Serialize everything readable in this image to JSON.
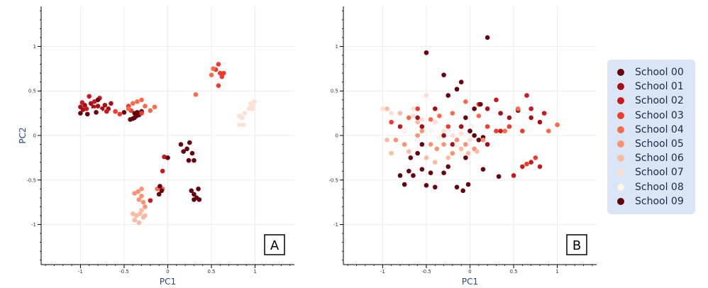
{
  "chart_data": [
    {
      "type": "scatter",
      "panel_label": "A",
      "xlabel": "PC1",
      "ylabel": "PC2",
      "xlim": [
        -1.45,
        1.45
      ],
      "ylim": [
        -1.45,
        1.45
      ],
      "xticks": [
        "-1",
        "-0.5",
        "0",
        "0.5",
        "1"
      ],
      "yticks": [
        "-1",
        "-0.5",
        "0",
        "0.5",
        "1"
      ],
      "series": [
        {
          "name": "School 00",
          "points": [
            [
              -0.3,
              0.27
            ],
            [
              -0.38,
              0.2
            ],
            [
              -0.35,
              0.26
            ],
            [
              -0.4,
              0.19
            ],
            [
              -0.33,
              0.23
            ],
            [
              -0.38,
              0.25
            ],
            [
              -0.36,
              0.22
            ]
          ]
        },
        {
          "name": "School 01",
          "points": [
            [
              -1.0,
              0.32
            ],
            [
              -0.95,
              0.34
            ],
            [
              -0.88,
              0.36
            ],
            [
              -0.85,
              0.32
            ],
            [
              -0.97,
              0.29
            ],
            [
              -0.8,
              0.33
            ],
            [
              -0.75,
              0.3
            ],
            [
              -0.72,
              0.34
            ],
            [
              -0.68,
              0.3
            ],
            [
              -0.65,
              0.36
            ]
          ]
        },
        {
          "name": "School 02",
          "points": [
            [
              -0.98,
              0.37
            ],
            [
              -0.93,
              0.3
            ],
            [
              -0.9,
              0.44
            ],
            [
              -0.84,
              0.38
            ],
            [
              -0.78,
              0.42
            ],
            [
              -0.7,
              0.27
            ],
            [
              -0.2,
              -0.73
            ],
            [
              -0.06,
              -0.4
            ],
            [
              -0.04,
              -0.24
            ]
          ]
        },
        {
          "name": "School 03",
          "points": [
            [
              -0.6,
              0.27
            ],
            [
              -0.55,
              0.24
            ],
            [
              -0.45,
              0.33
            ],
            [
              -0.42,
              0.28
            ],
            [
              -0.3,
              0.25
            ],
            [
              0.55,
              0.74
            ],
            [
              0.58,
              0.8
            ],
            [
              0.6,
              0.7
            ],
            [
              0.62,
              0.66
            ],
            [
              0.64,
              0.7
            ],
            [
              0.58,
              0.56
            ]
          ]
        },
        {
          "name": "School 04",
          "points": [
            [
              -0.45,
              0.3
            ],
            [
              -0.4,
              0.36
            ],
            [
              -0.35,
              0.38
            ],
            [
              -0.3,
              0.4
            ],
            [
              -0.26,
              0.33
            ],
            [
              -0.2,
              0.28
            ],
            [
              -0.15,
              0.32
            ],
            [
              0.32,
              0.46
            ],
            [
              0.5,
              0.68
            ],
            [
              0.52,
              0.75
            ],
            [
              -0.12,
              -0.6
            ],
            [
              -0.06,
              -0.6
            ]
          ]
        },
        {
          "name": "School 05",
          "points": [
            [
              -0.38,
              -0.65
            ],
            [
              -0.34,
              -0.63
            ],
            [
              -0.3,
              -0.68
            ],
            [
              -0.28,
              -0.75
            ],
            [
              -0.33,
              -0.72
            ],
            [
              -0.26,
              -0.8
            ],
            [
              -0.3,
              -0.6
            ]
          ]
        },
        {
          "name": "School 06",
          "points": [
            [
              -0.4,
              -0.88
            ],
            [
              -0.36,
              -0.9
            ],
            [
              -0.32,
              -0.88
            ],
            [
              -0.28,
              -0.92
            ],
            [
              -0.38,
              -0.95
            ],
            [
              -0.3,
              -0.84
            ],
            [
              -0.33,
              -0.98
            ],
            [
              -0.26,
              -0.9
            ]
          ]
        },
        {
          "name": "School 07",
          "points": [
            [
              0.82,
              0.22
            ],
            [
              0.85,
              0.2
            ],
            [
              0.88,
              0.25
            ],
            [
              0.82,
              0.12
            ],
            [
              0.87,
              0.12
            ],
            [
              0.93,
              0.3
            ],
            [
              0.97,
              0.33
            ],
            [
              0.95,
              0.36
            ],
            [
              0.99,
              0.38
            ],
            [
              0.97,
              0.3
            ]
          ]
        },
        {
          "name": "School 08",
          "points": [
            [
              -0.85,
              0.28
            ],
            [
              -0.78,
              0.27
            ]
          ]
        },
        {
          "name": "School 09",
          "points": [
            [
              -1.0,
              0.25
            ],
            [
              -0.92,
              0.24
            ],
            [
              -0.82,
              0.26
            ],
            [
              -0.8,
              0.4
            ],
            [
              -0.5,
              0.26
            ],
            [
              -0.43,
              0.18
            ],
            [
              -0.09,
              -0.57
            ],
            [
              -0.07,
              -0.62
            ],
            [
              -0.1,
              -0.66
            ],
            [
              0.0,
              -0.25
            ],
            [
              0.15,
              -0.1
            ],
            [
              0.18,
              -0.18
            ],
            [
              0.22,
              -0.15
            ],
            [
              0.25,
              -0.08
            ],
            [
              0.28,
              -0.2
            ],
            [
              0.24,
              -0.28
            ],
            [
              0.3,
              -0.28
            ],
            [
              0.27,
              -0.62
            ],
            [
              0.3,
              -0.66
            ],
            [
              0.33,
              -0.7
            ],
            [
              0.36,
              -0.72
            ],
            [
              0.3,
              -0.72
            ],
            [
              0.35,
              -0.6
            ]
          ]
        }
      ]
    },
    {
      "type": "scatter",
      "panel_label": "B",
      "xlabel": "PC1",
      "ylabel": "",
      "xlim": [
        -1.45,
        1.45
      ],
      "ylim": [
        -1.45,
        1.45
      ],
      "xticks": [
        "-1",
        "-0.5",
        "0",
        "0.5",
        "1"
      ],
      "yticks": [
        "-1",
        "-0.5",
        "0",
        "0.5",
        "1"
      ],
      "series": [
        {
          "name": "School 00",
          "points": [
            [
              -0.5,
              0.93
            ],
            [
              0.2,
              1.1
            ],
            [
              -0.3,
              0.68
            ],
            [
              -0.1,
              0.6
            ],
            [
              -0.15,
              0.52
            ],
            [
              -0.25,
              0.45
            ],
            [
              -0.7,
              -0.4
            ],
            [
              -0.65,
              -0.45
            ],
            [
              -0.55,
              -0.38
            ],
            [
              -0.5,
              -0.56
            ],
            [
              -0.4,
              -0.58
            ],
            [
              -0.3,
              -0.42
            ],
            [
              -0.15,
              -0.58
            ],
            [
              -0.08,
              -0.62
            ],
            [
              -0.02,
              -0.55
            ],
            [
              0.0,
              0.05
            ],
            [
              0.05,
              0.0
            ],
            [
              0.1,
              -0.05
            ],
            [
              0.15,
              -0.02
            ]
          ]
        },
        {
          "name": "School 01",
          "points": [
            [
              -0.6,
              0.2
            ],
            [
              -0.55,
              0.1
            ],
            [
              -0.4,
              0.3
            ],
            [
              -0.3,
              0.0
            ],
            [
              -0.2,
              -0.1
            ],
            [
              0.2,
              0.3
            ],
            [
              0.35,
              0.25
            ],
            [
              0.45,
              0.2
            ],
            [
              0.55,
              0.28
            ],
            [
              0.7,
              0.2
            ],
            [
              0.8,
              0.15
            ],
            [
              -0.1,
              0.1
            ],
            [
              0.2,
              -0.1
            ]
          ]
        },
        {
          "name": "School 02",
          "points": [
            [
              -0.8,
              0.1
            ],
            [
              -0.75,
              0.05
            ],
            [
              0.65,
              0.45
            ],
            [
              0.7,
              0.3
            ],
            [
              0.85,
              0.25
            ],
            [
              0.6,
              -0.35
            ],
            [
              0.7,
              -0.3
            ],
            [
              0.8,
              -0.35
            ],
            [
              0.5,
              -0.45
            ],
            [
              0.3,
              0.4
            ],
            [
              0.35,
              0.05
            ]
          ]
        },
        {
          "name": "School 03",
          "points": [
            [
              -0.9,
              0.15
            ],
            [
              -0.6,
              0.3
            ],
            [
              -0.25,
              0.1
            ],
            [
              0.1,
              0.35
            ],
            [
              0.2,
              0.1
            ],
            [
              0.3,
              0.05
            ],
            [
              0.45,
              0.1
            ],
            [
              0.6,
              0.05
            ],
            [
              0.75,
              -0.25
            ],
            [
              0.65,
              -0.32
            ]
          ]
        },
        {
          "name": "School 04",
          "points": [
            [
              -0.7,
              0.2
            ],
            [
              -0.45,
              0.18
            ],
            [
              -0.35,
              0.22
            ],
            [
              -0.2,
              0.25
            ],
            [
              -0.05,
              0.38
            ],
            [
              0.1,
              0.22
            ],
            [
              0.4,
              0.05
            ],
            [
              0.9,
              0.05
            ],
            [
              1.0,
              0.12
            ],
            [
              0.55,
              0.3
            ]
          ]
        },
        {
          "name": "School 05",
          "points": [
            [
              -0.6,
              0.0
            ],
            [
              -0.55,
              0.05
            ],
            [
              -0.45,
              -0.1
            ],
            [
              -0.38,
              -0.15
            ],
            [
              -0.3,
              -0.1
            ],
            [
              -0.2,
              -0.2
            ],
            [
              -0.15,
              -0.05
            ],
            [
              -0.05,
              -0.1
            ],
            [
              0.05,
              -0.15
            ],
            [
              0.15,
              -0.05
            ],
            [
              -0.75,
              -0.1
            ],
            [
              -0.85,
              -0.05
            ]
          ]
        },
        {
          "name": "School 06",
          "points": [
            [
              -0.9,
              -0.2
            ],
            [
              -0.95,
              -0.05
            ],
            [
              -0.7,
              -0.18
            ],
            [
              -0.5,
              -0.25
            ],
            [
              -0.4,
              -0.3
            ],
            [
              -0.25,
              -0.25
            ],
            [
              -0.1,
              -0.15
            ],
            [
              -0.02,
              -0.2
            ],
            [
              0.08,
              -0.18
            ],
            [
              -0.95,
              0.3
            ],
            [
              -0.6,
              0.15
            ],
            [
              -0.8,
              0.25
            ]
          ]
        },
        {
          "name": "School 07",
          "points": [
            [
              -1.0,
              0.3
            ],
            [
              -0.9,
              0.25
            ],
            [
              -0.65,
              0.22
            ],
            [
              -0.55,
              0.18
            ],
            [
              -0.4,
              0.15
            ],
            [
              -0.3,
              0.05
            ],
            [
              -0.2,
              0.0
            ],
            [
              -0.1,
              0.02
            ],
            [
              0.0,
              -0.05
            ],
            [
              -0.65,
              0.3
            ],
            [
              -0.5,
              0.45
            ]
          ]
        },
        {
          "name": "School 08",
          "points": [
            [
              -0.75,
              0.05
            ],
            [
              -0.6,
              -0.05
            ],
            [
              -0.45,
              0.05
            ],
            [
              -0.35,
              -0.02
            ],
            [
              -0.15,
              -0.1
            ],
            [
              0.02,
              0.1
            ],
            [
              -0.25,
              0.05
            ],
            [
              -0.1,
              -0.2
            ]
          ]
        },
        {
          "name": "School 09",
          "points": [
            [
              -0.8,
              -0.45
            ],
            [
              -0.75,
              -0.55
            ],
            [
              -0.68,
              -0.25
            ],
            [
              -0.6,
              -0.2
            ],
            [
              -0.55,
              -0.1
            ],
            [
              -0.45,
              -0.42
            ],
            [
              -0.25,
              -0.35
            ],
            [
              -0.05,
              -0.25
            ],
            [
              0.15,
              -0.38
            ],
            [
              0.33,
              -0.46
            ],
            [
              0.05,
              0.3
            ],
            [
              0.12,
              0.35
            ],
            [
              -0.05,
              0.2
            ],
            [
              0.0,
              0.05
            ]
          ]
        }
      ]
    }
  ],
  "legend": {
    "items": [
      {
        "label": "School 00",
        "color": "#67000d"
      },
      {
        "label": "School 01",
        "color": "#a50f15"
      },
      {
        "label": "School 02",
        "color": "#cb181d"
      },
      {
        "label": "School 03",
        "color": "#ef3b2c"
      },
      {
        "label": "School 04",
        "color": "#fb6a4a"
      },
      {
        "label": "School 05",
        "color": "#fc9272"
      },
      {
        "label": "School 06",
        "color": "#fcbba1"
      },
      {
        "label": "School 07",
        "color": "#fee0d2"
      },
      {
        "label": "School 08",
        "color": "#fff5f0"
      },
      {
        "label": "School 09",
        "color": "#67000d"
      }
    ]
  }
}
